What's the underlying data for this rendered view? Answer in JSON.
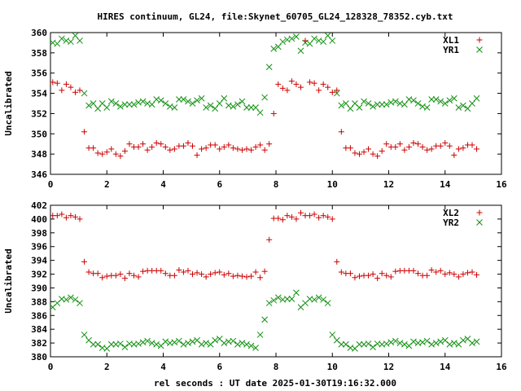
{
  "title": "HIRES continuum, GL24, file:Skynet_60705_GL24_128328_78352.cyb.txt",
  "xlabel": "rel seconds : UT date 2025-01-30T19:16:32.000",
  "colors": {
    "red": "#cc0000",
    "green": "#109010"
  },
  "chart_data": [
    {
      "type": "scatter",
      "ylabel": "Uncalibrated",
      "xlim": [
        0,
        16
      ],
      "ylim": [
        346,
        360
      ],
      "xticks": [
        "0",
        "2",
        "4",
        "6",
        "8",
        "10",
        "12",
        "14",
        "16"
      ],
      "yticks": [
        "346",
        "348",
        "350",
        "352",
        "354",
        "356",
        "358",
        "360"
      ],
      "legend_position": "top-right",
      "series": [
        {
          "name": "XL1",
          "marker": "plus",
          "color": "#cc0000",
          "x": [
            0.08,
            0.24,
            0.4,
            0.56,
            0.72,
            0.88,
            1.04,
            1.2,
            1.36,
            1.52,
            1.68,
            1.84,
            2.0,
            2.16,
            2.32,
            2.48,
            2.64,
            2.8,
            2.96,
            3.12,
            3.28,
            3.44,
            3.6,
            3.76,
            3.92,
            4.08,
            4.24,
            4.4,
            4.56,
            4.72,
            4.88,
            5.04,
            5.2,
            5.36,
            5.52,
            5.68,
            5.84,
            6.0,
            6.16,
            6.32,
            6.48,
            6.64,
            6.8,
            6.96,
            7.12,
            7.28,
            7.44,
            7.6,
            7.76,
            7.92,
            8.08,
            8.24,
            8.4,
            8.56,
            8.72,
            8.88,
            9.04,
            9.2,
            9.36,
            9.52,
            9.68,
            9.84,
            10.0,
            10.16,
            10.32,
            10.48,
            10.64,
            10.8,
            10.96,
            11.12,
            11.28,
            11.44,
            11.6,
            11.76,
            11.92,
            12.08,
            12.24,
            12.4,
            12.56,
            12.72,
            12.88,
            13.04,
            13.2,
            13.36,
            13.52,
            13.68,
            13.84,
            14.0,
            14.16,
            14.32,
            14.48,
            14.64,
            14.8,
            14.96,
            15.12
          ],
          "y": [
            355.1,
            355.0,
            354.3,
            354.9,
            354.6,
            354.1,
            354.3,
            350.2,
            348.6,
            348.6,
            348.1,
            348.0,
            348.2,
            348.5,
            348.0,
            347.8,
            348.3,
            349.0,
            348.7,
            348.7,
            349.0,
            348.4,
            348.7,
            349.1,
            349.0,
            348.7,
            348.4,
            348.5,
            348.8,
            348.8,
            349.1,
            348.8,
            347.9,
            348.5,
            348.6,
            348.9,
            348.9,
            348.5,
            348.7,
            348.9,
            348.6,
            348.5,
            348.4,
            348.5,
            348.4,
            348.7,
            348.9,
            348.4,
            349.0,
            352.0,
            354.9,
            354.5,
            354.3,
            355.2,
            354.9,
            354.6,
            359.2,
            355.1,
            355.0,
            354.3,
            354.9,
            354.6,
            354.1,
            354.3,
            350.2,
            348.6,
            348.6,
            348.1,
            348.0,
            348.2,
            348.5,
            348.0,
            347.8,
            348.3,
            349.0,
            348.7,
            348.7,
            349.0,
            348.4,
            348.7,
            349.1,
            349.0,
            348.7,
            348.4,
            348.5,
            348.8,
            348.8,
            349.1,
            348.8,
            347.9,
            348.5,
            348.6,
            348.9,
            348.9,
            348.5
          ]
        },
        {
          "name": "YR1",
          "marker": "cross",
          "color": "#109010",
          "x": [
            0.08,
            0.24,
            0.4,
            0.56,
            0.72,
            0.88,
            1.04,
            1.2,
            1.36,
            1.52,
            1.68,
            1.84,
            2.0,
            2.16,
            2.32,
            2.48,
            2.64,
            2.8,
            2.96,
            3.12,
            3.28,
            3.44,
            3.6,
            3.76,
            3.92,
            4.08,
            4.24,
            4.4,
            4.56,
            4.72,
            4.88,
            5.04,
            5.2,
            5.36,
            5.52,
            5.68,
            5.84,
            6.0,
            6.16,
            6.32,
            6.48,
            6.64,
            6.8,
            6.96,
            7.12,
            7.28,
            7.44,
            7.6,
            7.76,
            7.92,
            8.08,
            8.24,
            8.4,
            8.56,
            8.72,
            8.88,
            9.04,
            9.2,
            9.36,
            9.52,
            9.68,
            9.84,
            10.0,
            10.16,
            10.32,
            10.48,
            10.64,
            10.8,
            10.96,
            11.12,
            11.28,
            11.44,
            11.6,
            11.76,
            11.92,
            12.08,
            12.24,
            12.4,
            12.56,
            12.72,
            12.88,
            13.04,
            13.2,
            13.36,
            13.52,
            13.68,
            13.84,
            14.0,
            14.16,
            14.32,
            14.48,
            14.64,
            14.8,
            14.96,
            15.12
          ],
          "y": [
            359.0,
            358.9,
            359.4,
            359.2,
            359.1,
            359.7,
            359.2,
            354.0,
            352.8,
            353.0,
            352.5,
            353.0,
            352.6,
            353.2,
            353.0,
            352.7,
            352.9,
            352.9,
            352.9,
            353.1,
            353.2,
            353.0,
            352.9,
            353.4,
            353.3,
            353.0,
            352.7,
            352.6,
            353.4,
            353.4,
            353.2,
            353.0,
            353.3,
            353.5,
            352.6,
            352.8,
            352.5,
            353.0,
            353.5,
            352.8,
            352.7,
            352.9,
            353.2,
            352.6,
            352.6,
            352.6,
            352.1,
            353.6,
            356.6,
            358.4,
            358.6,
            359.1,
            359.3,
            359.4,
            359.6,
            358.2,
            359.0,
            358.9,
            359.4,
            359.2,
            359.1,
            359.7,
            359.2,
            354.0,
            352.8,
            353.0,
            352.5,
            353.0,
            352.6,
            353.2,
            353.0,
            352.7,
            352.9,
            352.9,
            352.9,
            353.1,
            353.2,
            353.0,
            352.9,
            353.4,
            353.3,
            353.0,
            352.7,
            352.6,
            353.4,
            353.4,
            353.2,
            353.0,
            353.3,
            353.5,
            352.6,
            352.8,
            352.5,
            353.0,
            353.5
          ]
        }
      ]
    },
    {
      "type": "scatter",
      "ylabel": "Uncalibrated",
      "xlim": [
        0,
        16
      ],
      "ylim": [
        380,
        402
      ],
      "xticks": [
        "0",
        "2",
        "4",
        "6",
        "8",
        "10",
        "12",
        "14",
        "16"
      ],
      "yticks": [
        "380",
        "382",
        "384",
        "386",
        "388",
        "390",
        "392",
        "394",
        "396",
        "398",
        "400",
        "402"
      ],
      "legend_position": "top-right",
      "series": [
        {
          "name": "XL2",
          "marker": "plus",
          "color": "#cc0000",
          "x": [
            0.08,
            0.24,
            0.4,
            0.56,
            0.72,
            0.88,
            1.04,
            1.2,
            1.36,
            1.52,
            1.68,
            1.84,
            2.0,
            2.16,
            2.32,
            2.48,
            2.64,
            2.8,
            2.96,
            3.12,
            3.28,
            3.44,
            3.6,
            3.76,
            3.92,
            4.08,
            4.24,
            4.4,
            4.56,
            4.72,
            4.88,
            5.04,
            5.2,
            5.36,
            5.52,
            5.68,
            5.84,
            6.0,
            6.16,
            6.32,
            6.48,
            6.64,
            6.8,
            6.96,
            7.12,
            7.28,
            7.44,
            7.6,
            7.76,
            7.92,
            8.08,
            8.24,
            8.4,
            8.56,
            8.72,
            8.88,
            9.04,
            9.2,
            9.36,
            9.52,
            9.68,
            9.84,
            10.0,
            10.16,
            10.32,
            10.48,
            10.64,
            10.8,
            10.96,
            11.12,
            11.28,
            11.44,
            11.6,
            11.76,
            11.92,
            12.08,
            12.24,
            12.4,
            12.56,
            12.72,
            12.88,
            13.04,
            13.2,
            13.36,
            13.52,
            13.68,
            13.84,
            14.0,
            14.16,
            14.32,
            14.48,
            14.64,
            14.8,
            14.96,
            15.12
          ],
          "y": [
            400.5,
            400.5,
            400.7,
            400.2,
            400.5,
            400.3,
            400.0,
            393.8,
            392.3,
            392.1,
            392.1,
            391.5,
            391.7,
            391.8,
            391.8,
            392.0,
            391.4,
            392.1,
            391.8,
            391.6,
            392.4,
            392.5,
            392.5,
            392.5,
            392.5,
            392.1,
            391.8,
            391.8,
            392.6,
            392.3,
            392.5,
            392.0,
            392.2,
            392.0,
            391.6,
            392.0,
            392.2,
            392.3,
            391.9,
            392.1,
            391.7,
            391.8,
            391.7,
            391.6,
            391.7,
            392.3,
            391.5,
            392.4,
            397.0,
            400.1,
            400.1,
            399.9,
            400.5,
            400.3,
            400.0,
            400.9,
            400.5,
            400.5,
            400.7,
            400.2,
            400.5,
            400.3,
            400.0,
            393.8,
            392.3,
            392.1,
            392.1,
            391.5,
            391.7,
            391.8,
            391.8,
            392.0,
            391.4,
            392.1,
            391.8,
            391.6,
            392.4,
            392.5,
            392.5,
            392.5,
            392.5,
            392.1,
            391.8,
            391.8,
            392.6,
            392.3,
            392.5,
            392.0,
            392.2,
            392.0,
            391.6,
            392.0,
            392.2,
            392.3,
            391.9
          ]
        },
        {
          "name": "YR2",
          "marker": "cross",
          "color": "#109010",
          "x": [
            0.08,
            0.24,
            0.4,
            0.56,
            0.72,
            0.88,
            1.04,
            1.2,
            1.36,
            1.52,
            1.68,
            1.84,
            2.0,
            2.16,
            2.32,
            2.48,
            2.64,
            2.8,
            2.96,
            3.12,
            3.28,
            3.44,
            3.6,
            3.76,
            3.92,
            4.08,
            4.24,
            4.4,
            4.56,
            4.72,
            4.88,
            5.04,
            5.2,
            5.36,
            5.52,
            5.68,
            5.84,
            6.0,
            6.16,
            6.32,
            6.48,
            6.64,
            6.8,
            6.96,
            7.12,
            7.28,
            7.44,
            7.6,
            7.76,
            7.92,
            8.08,
            8.24,
            8.4,
            8.56,
            8.72,
            8.88,
            9.04,
            9.2,
            9.36,
            9.52,
            9.68,
            9.84,
            10.0,
            10.16,
            10.32,
            10.48,
            10.64,
            10.8,
            10.96,
            11.12,
            11.28,
            11.44,
            11.6,
            11.76,
            11.92,
            12.08,
            12.24,
            12.4,
            12.56,
            12.72,
            12.88,
            13.04,
            13.2,
            13.36,
            13.52,
            13.68,
            13.84,
            14.0,
            14.16,
            14.32,
            14.48,
            14.64,
            14.8,
            14.96,
            15.12
          ],
          "y": [
            387.2,
            387.8,
            388.4,
            388.3,
            388.6,
            388.3,
            387.8,
            383.2,
            382.4,
            381.8,
            381.8,
            381.3,
            381.2,
            381.8,
            381.8,
            381.9,
            381.4,
            381.9,
            381.8,
            381.9,
            382.1,
            382.3,
            382.0,
            381.8,
            381.6,
            382.2,
            382.0,
            382.1,
            382.3,
            381.8,
            382.0,
            382.2,
            382.4,
            381.8,
            382.0,
            381.8,
            382.4,
            382.6,
            382.0,
            382.2,
            382.3,
            381.8,
            382.0,
            381.8,
            381.6,
            381.3,
            383.2,
            385.4,
            387.8,
            388.2,
            388.6,
            388.3,
            388.4,
            388.4,
            389.3,
            387.2,
            387.8,
            388.4,
            388.3,
            388.6,
            388.3,
            387.8,
            383.2,
            382.4,
            381.8,
            381.8,
            381.3,
            381.2,
            381.8,
            381.8,
            381.9,
            381.4,
            381.9,
            381.8,
            381.9,
            382.1,
            382.3,
            382.0,
            381.8,
            381.6,
            382.2,
            382.0,
            382.1,
            382.3,
            381.8,
            382.0,
            382.2,
            382.4,
            381.8,
            382.0,
            381.8,
            382.4,
            382.6,
            382.0,
            382.2
          ]
        }
      ]
    }
  ]
}
